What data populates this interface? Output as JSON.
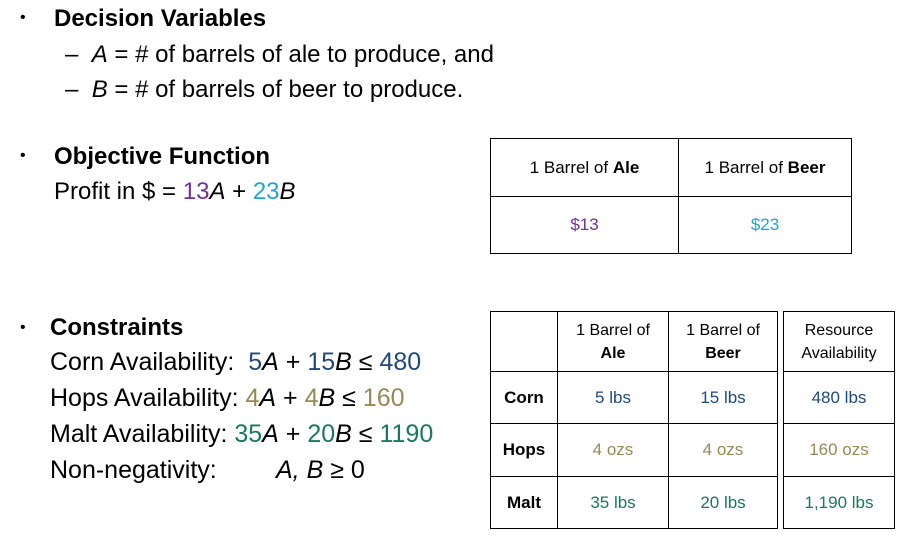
{
  "decision": {
    "bullet": "•",
    "heading": "Decision Variables",
    "items": [
      {
        "dash": "–",
        "var": "A",
        "text": " = # of barrels of ale to produce, and"
      },
      {
        "dash": "–",
        "var": "B",
        "text": " = # of barrels of beer to produce."
      }
    ]
  },
  "objective": {
    "bullet": "•",
    "heading": "Objective Function",
    "prefix": "Profit in $ = ",
    "coef_a": "13",
    "var_a": "A",
    "plus": " + ",
    "coef_b": "23",
    "var_b": "B"
  },
  "profit_table": {
    "header_prefix": "1 Barrel of ",
    "col1_bold": "Ale",
    "col2_bold": "Beer",
    "val1": "$13",
    "val2": "$23"
  },
  "constraints": {
    "bullet": "•",
    "heading": "Constraints",
    "rows": [
      {
        "label": "Corn Availability:  ",
        "c1": "5",
        "v1": "A",
        "plus": " + ",
        "c2": "15",
        "v2": "B",
        "leq": " ≤ ",
        "rhs": "480"
      },
      {
        "label": "Hops Availability: ",
        "c1": "4",
        "v1": "A",
        "plus": " + ",
        "c2": "4",
        "v2": "B",
        "leq": " ≤ ",
        "rhs": "160"
      },
      {
        "label": "Malt Availability: ",
        "c1": "35",
        "v1": "A",
        "plus": " + ",
        "c2": "20",
        "v2": "B",
        "leq": " ≤ ",
        "rhs": "1190"
      }
    ],
    "nonneg_label": "Non-negativity:",
    "nonneg_expr": "A, B",
    "nonneg_rhs": " ≥ 0"
  },
  "resource_table": {
    "h1_line1": "1 Barrel of",
    "h1_line2": "Ale",
    "h2_line1": "1 Barrel of",
    "h2_line2": "Beer",
    "h3_line1": "Resource",
    "h3_line2": "Availability",
    "rows": [
      {
        "label": "Corn",
        "ale": "5 lbs",
        "beer": "15 lbs",
        "avail": "480 lbs"
      },
      {
        "label": "Hops",
        "ale": "4 ozs",
        "beer": "4 ozs",
        "avail": "160 ozs"
      },
      {
        "label": "Malt",
        "ale": "35 lbs",
        "beer": "20 lbs",
        "avail": "1,190 lbs"
      }
    ]
  },
  "colors": {
    "profit_ale": "#7030a0",
    "profit_beer": "#1fa5d6",
    "corn": "#1f497d",
    "hops": "#948a54",
    "malt": "#187a5a"
  }
}
